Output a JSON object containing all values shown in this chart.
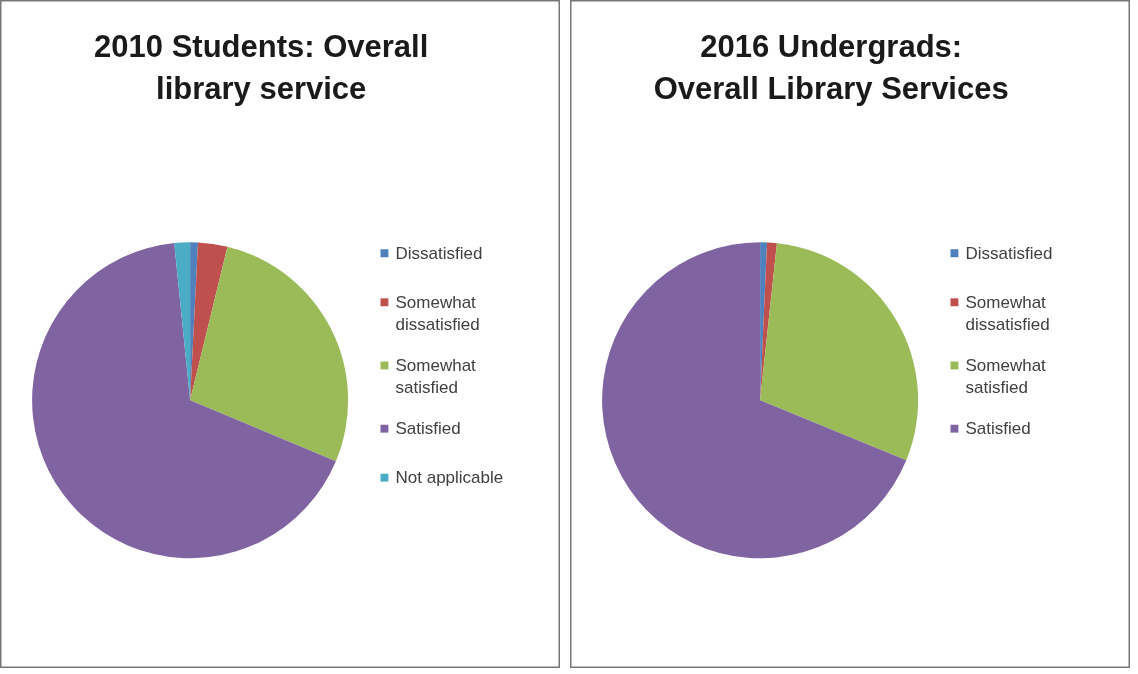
{
  "chart_data": [
    {
      "type": "pie",
      "title": "2010 Students: Overall\nlibrary service",
      "categories": [
        "Dissatisfied",
        "Somewhat dissatisfied",
        "Somewhat satisfied",
        "Satisfied",
        "Not applicable"
      ],
      "values": [
        0.8,
        3.0,
        27.5,
        67.1,
        1.6
      ],
      "colors": [
        "#4f81bd",
        "#c0504d",
        "#9bbb59",
        "#8064a2",
        "#4bacc6"
      ],
      "legend": "right"
    },
    {
      "type": "pie",
      "title": "2016 Undergrads:\nOverall Library Services",
      "categories": [
        "Dissatisfied",
        "Somewhat dissatisfied",
        "Somewhat satisfied",
        "Satisfied"
      ],
      "values": [
        0.7,
        1.0,
        29.5,
        68.8
      ],
      "colors": [
        "#4f81bd",
        "#c0504d",
        "#9bbb59",
        "#8064a2"
      ],
      "legend": "right"
    }
  ]
}
